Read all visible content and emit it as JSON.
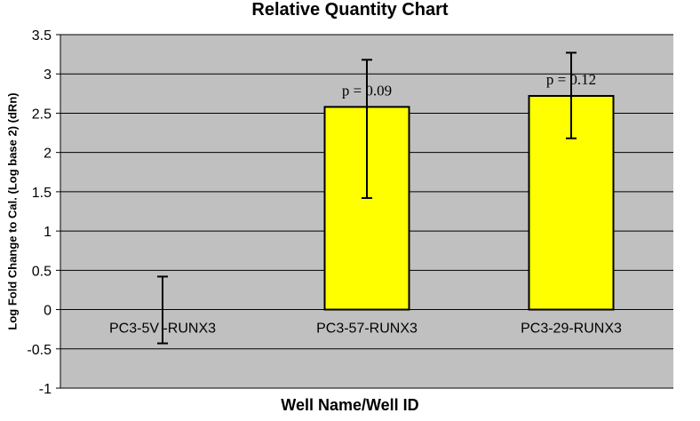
{
  "chart_data": {
    "type": "bar",
    "title": "Relative Quantity Chart",
    "xlabel": "Well Name/Well ID",
    "ylabel": "Log Fold Change to Cal. (Log base 2) (dRn)",
    "ylim": [
      -1,
      3.5
    ],
    "yticks": [
      3.5,
      3,
      2.5,
      2,
      1.5,
      1,
      0.5,
      0,
      -0.5,
      -1
    ],
    "tick_labels": [
      "3.5",
      "3",
      "2.5",
      "2",
      "1.5",
      "1",
      "0.5",
      "0",
      "-0.5",
      "-1"
    ],
    "categories": [
      "PC3-5V -RUNX3",
      "PC3-57-RUNX3",
      "PC3-29-RUNX3"
    ],
    "values": [
      0,
      2.58,
      2.72
    ],
    "error_low": [
      -0.43,
      1.42,
      2.18
    ],
    "error_high": [
      0.42,
      3.18,
      3.27
    ],
    "annotations": [
      "",
      "p = 0.09",
      "p = 0.12"
    ],
    "grid": true,
    "legend": "none",
    "colors": {
      "plot_bg": "#c0c0c0",
      "bar_fill": "#ffff00",
      "bar_stroke": "#000000",
      "grid": "#000000"
    }
  }
}
